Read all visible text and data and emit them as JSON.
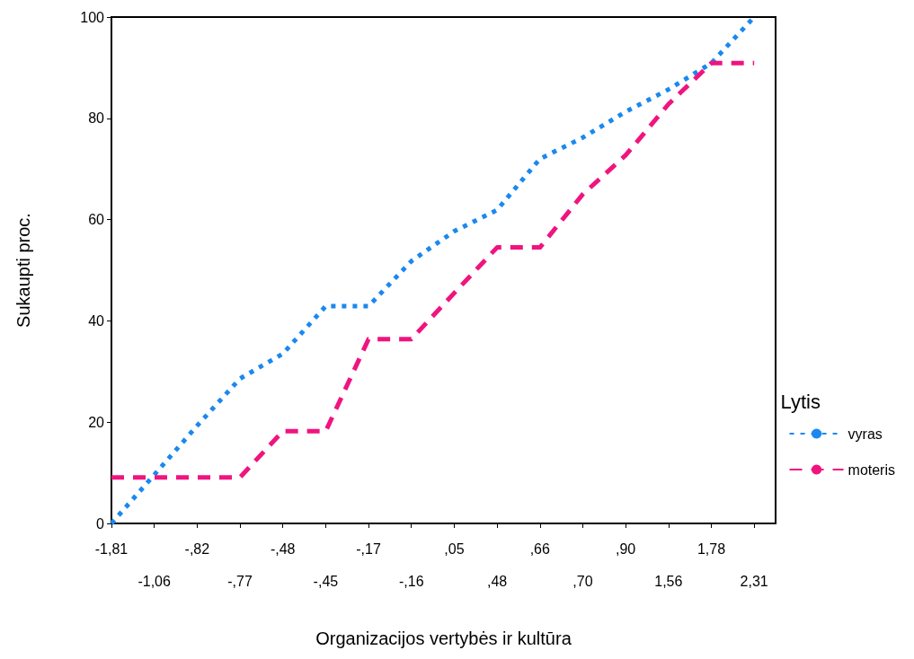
{
  "chart_data": {
    "type": "line",
    "xlabel": "Organizacijos vertybės ir kultūra",
    "ylabel": "Sukaupti proc.",
    "legend_title": "Lytis",
    "categories": [
      "-1,81",
      "-1,06",
      "-,82",
      "-,77",
      "-,48",
      "-,45",
      "-,17",
      "-,16",
      ",05",
      ",48",
      ",66",
      ",70",
      ",90",
      "1,56",
      "1,78",
      "2,31"
    ],
    "series": [
      {
        "name": "vyras",
        "color": "#1a88f0",
        "line_style": "dotted",
        "values": [
          0,
          9.6,
          19.3,
          28.6,
          33.5,
          42.9,
          42.9,
          51.8,
          57.7,
          61.9,
          72,
          76.2,
          81.3,
          85.7,
          90.9,
          100
        ]
      },
      {
        "name": "moteris",
        "color": "#f0147f",
        "line_style": "dashed",
        "values": [
          9.1,
          9.1,
          9.1,
          9.1,
          18.2,
          18.2,
          36.4,
          36.4,
          45.5,
          54.5,
          54.5,
          65,
          72.7,
          82.8,
          90.9,
          90.9
        ]
      }
    ],
    "ylim": [
      0,
      100
    ],
    "yticks": [
      0,
      20,
      40,
      60,
      80,
      100
    ],
    "grid": false,
    "legend": "right",
    "marker": "none"
  }
}
